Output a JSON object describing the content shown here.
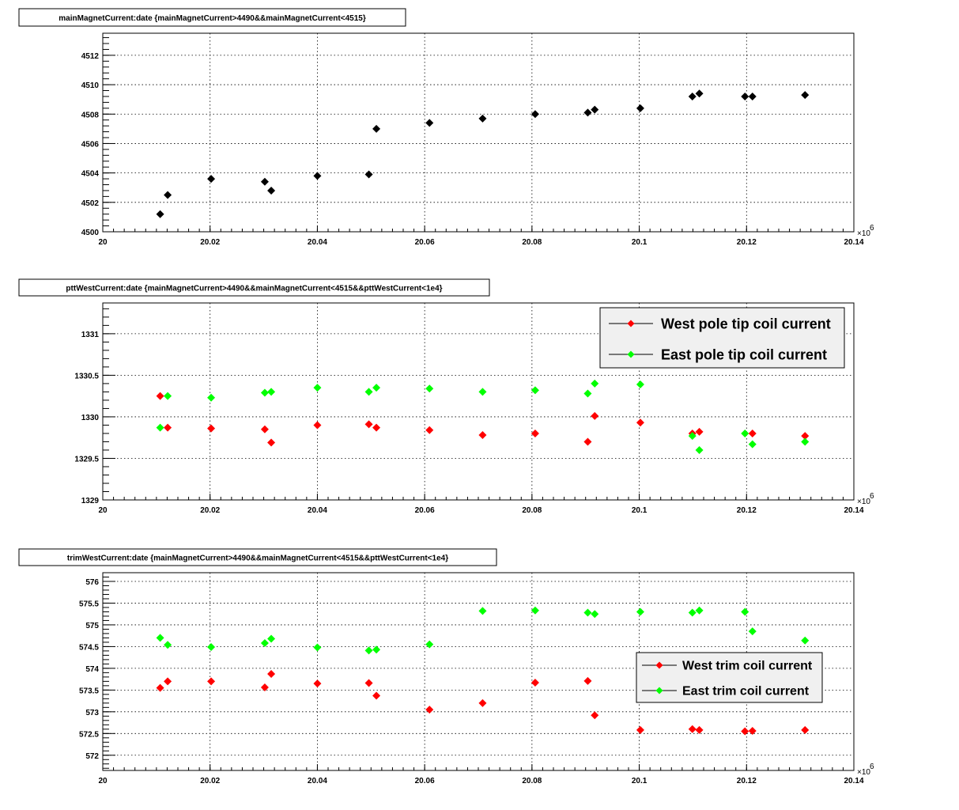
{
  "colors": {
    "black": "#000000",
    "red": "#ff0000",
    "green": "#00ff00",
    "legend_bg": "#f0f0f0"
  },
  "chart_data": [
    {
      "type": "scatter",
      "title": "mainMagnetCurrent:date {mainMagnetCurrent>4490&&mainMagnetCurrent<4515}",
      "xlim": [
        20.0,
        20.14
      ],
      "ylim": [
        4500,
        4513.5
      ],
      "x_axis_exponent": "×10",
      "x_axis_exponent_power": "6",
      "x_ticks": [
        "20",
        "20.02",
        "20.04",
        "20.06",
        "20.08",
        "20.1",
        "20.12",
        "20.14"
      ],
      "y_ticks": [
        "4500",
        "4502",
        "4504",
        "4506",
        "4508",
        "4510",
        "4512"
      ],
      "grid": true,
      "legend": null,
      "series": [
        {
          "color": "#000000",
          "points": [
            [
              20.0107,
              4501.2
            ],
            [
              20.0121,
              4502.5
            ],
            [
              20.0202,
              4503.6
            ],
            [
              20.0302,
              4503.4
            ],
            [
              20.0314,
              4502.8
            ],
            [
              20.04,
              4503.8
            ],
            [
              20.0496,
              4503.9
            ],
            [
              20.051,
              4507.0
            ],
            [
              20.0609,
              4507.4
            ],
            [
              20.0708,
              4507.7
            ],
            [
              20.0806,
              4508.0
            ],
            [
              20.0904,
              4508.1
            ],
            [
              20.0917,
              4508.3
            ],
            [
              20.1002,
              4508.4
            ],
            [
              20.1099,
              4509.2
            ],
            [
              20.1112,
              4509.4
            ],
            [
              20.1197,
              4509.2
            ],
            [
              20.1211,
              4509.2
            ],
            [
              20.1309,
              4509.3
            ]
          ]
        }
      ]
    },
    {
      "type": "scatter",
      "title": "pttWestCurrent:date {mainMagnetCurrent>4490&&mainMagnetCurrent<4515&&pttWestCurrent<1e4}",
      "xlim": [
        20.0,
        20.14
      ],
      "ylim": [
        1329.0,
        1331.37
      ],
      "x_axis_exponent": "×10",
      "x_axis_exponent_power": "6",
      "x_ticks": [
        "20",
        "20.02",
        "20.04",
        "20.06",
        "20.08",
        "20.1",
        "20.12",
        "20.14"
      ],
      "y_ticks": [
        "1329",
        "1329.5",
        "1330",
        "1330.5",
        "1331"
      ],
      "grid": true,
      "legend": "top-right",
      "series": [
        {
          "name": "West pole tip coil current",
          "color": "#ff0000",
          "points": [
            [
              20.0107,
              1330.25
            ],
            [
              20.0121,
              1329.87
            ],
            [
              20.0202,
              1329.86
            ],
            [
              20.0302,
              1329.85
            ],
            [
              20.0314,
              1329.69
            ],
            [
              20.04,
              1329.9
            ],
            [
              20.0496,
              1329.91
            ],
            [
              20.051,
              1329.87
            ],
            [
              20.0609,
              1329.84
            ],
            [
              20.0708,
              1329.78
            ],
            [
              20.0806,
              1329.8
            ],
            [
              20.0904,
              1329.7
            ],
            [
              20.0917,
              1330.01
            ],
            [
              20.1002,
              1329.93
            ],
            [
              20.1099,
              1329.8
            ],
            [
              20.1112,
              1329.82
            ],
            [
              20.1211,
              1329.8
            ],
            [
              20.1309,
              1329.77
            ]
          ]
        },
        {
          "name": "East pole tip coil current",
          "color": "#00ff00",
          "points": [
            [
              20.0107,
              1329.87
            ],
            [
              20.0121,
              1330.25
            ],
            [
              20.0202,
              1330.23
            ],
            [
              20.0302,
              1330.29
            ],
            [
              20.0314,
              1330.3
            ],
            [
              20.04,
              1330.35
            ],
            [
              20.0496,
              1330.3
            ],
            [
              20.051,
              1330.35
            ],
            [
              20.0609,
              1330.34
            ],
            [
              20.0708,
              1330.3
            ],
            [
              20.0806,
              1330.32
            ],
            [
              20.0904,
              1330.28
            ],
            [
              20.0917,
              1330.4
            ],
            [
              20.1002,
              1330.39
            ],
            [
              20.1099,
              1329.77
            ],
            [
              20.1112,
              1329.6
            ],
            [
              20.1197,
              1329.8
            ],
            [
              20.1211,
              1329.67
            ],
            [
              20.1309,
              1329.7
            ]
          ]
        }
      ]
    },
    {
      "type": "scatter",
      "title": "trimWestCurrent:date {mainMagnetCurrent>4490&&mainMagnetCurrent<4515&&pttWestCurrent<1e4}",
      "xlim": [
        20.0,
        20.14
      ],
      "ylim": [
        571.65,
        576.2
      ],
      "x_axis_exponent": "×10",
      "x_axis_exponent_power": "6",
      "x_ticks": [
        "20",
        "20.02",
        "20.04",
        "20.06",
        "20.08",
        "20.1",
        "20.12",
        "20.14"
      ],
      "y_ticks": [
        "572",
        "572.5",
        "573",
        "573.5",
        "574",
        "574.5",
        "575",
        "575.5",
        "576"
      ],
      "grid": true,
      "legend": "bottom-right",
      "series": [
        {
          "name": "West trim coil current",
          "color": "#ff0000",
          "points": [
            [
              20.0107,
              573.55
            ],
            [
              20.0121,
              573.7
            ],
            [
              20.0202,
              573.7
            ],
            [
              20.0302,
              573.56
            ],
            [
              20.0314,
              573.87
            ],
            [
              20.04,
              573.65
            ],
            [
              20.0496,
              573.66
            ],
            [
              20.051,
              573.37
            ],
            [
              20.0609,
              573.05
            ],
            [
              20.0708,
              573.2
            ],
            [
              20.0806,
              573.67
            ],
            [
              20.0904,
              573.71
            ],
            [
              20.0917,
              572.92
            ],
            [
              20.1002,
              572.58
            ],
            [
              20.1099,
              572.6
            ],
            [
              20.1112,
              572.58
            ],
            [
              20.1197,
              572.55
            ],
            [
              20.1211,
              572.56
            ],
            [
              20.1309,
              572.58
            ]
          ]
        },
        {
          "name": "East trim coil current",
          "color": "#00ff00",
          "points": [
            [
              20.0107,
              574.7
            ],
            [
              20.0121,
              574.54
            ],
            [
              20.0202,
              574.49
            ],
            [
              20.0302,
              574.58
            ],
            [
              20.0314,
              574.68
            ],
            [
              20.04,
              574.48
            ],
            [
              20.0496,
              574.41
            ],
            [
              20.051,
              574.43
            ],
            [
              20.0609,
              574.55
            ],
            [
              20.0708,
              575.32
            ],
            [
              20.0806,
              575.33
            ],
            [
              20.0904,
              575.28
            ],
            [
              20.0917,
              575.25
            ],
            [
              20.1002,
              575.3
            ],
            [
              20.1099,
              575.28
            ],
            [
              20.1112,
              575.33
            ],
            [
              20.1197,
              575.3
            ],
            [
              20.1211,
              574.85
            ],
            [
              20.1309,
              574.64
            ]
          ]
        }
      ]
    }
  ]
}
